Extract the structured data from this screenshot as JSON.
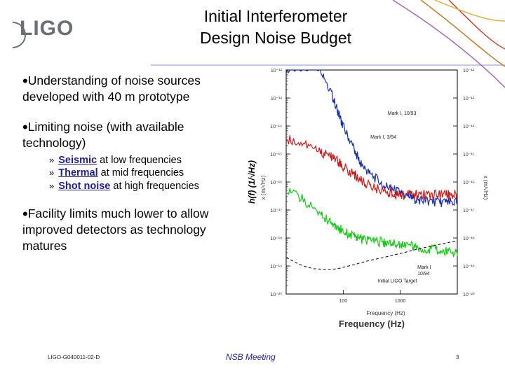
{
  "slide": {
    "logo_text": "LIGO",
    "title_line1": "Initial Interferometer",
    "title_line2": "Design Noise Budget",
    "bullets": [
      {
        "text": "Understanding of noise sources developed with 40 m prototype",
        "line1": "Understanding of noise sources",
        "line2": "developed with 40 m prototype"
      },
      {
        "text": "Limiting noise (with available technology)",
        "line1": "Limiting noise (with available",
        "line2": "technology)"
      },
      {
        "text": "Facility limits much lower to allow improved detectors as technology matures",
        "line1": "Facility limits much lower to allow",
        "line2": "improved detectors as technology",
        "line3": "matures"
      }
    ],
    "subbullets": [
      {
        "marker": "»",
        "keyword": "Seismic",
        "rest": " at low frequencies"
      },
      {
        "marker": "»",
        "keyword": "Thermal",
        "rest": " at mid frequencies"
      },
      {
        "marker": "»",
        "keyword": "Shot noise",
        "rest": " at high frequencies"
      }
    ],
    "footer_doc": "LIGO-G040011-02-D",
    "footer_meeting": "NSB Meeting",
    "footer_page": "3",
    "accent_color": "#8a8fd0"
  },
  "chart_data": {
    "type": "line",
    "title": "",
    "xlabel": "Frequency (Hz)",
    "ylabel": "h(f) (1/√Hz)",
    "xlabel_small": "Frequency (Hz)",
    "ylabel_small": "x (m/√Hz)",
    "right_ylabel": "x (m/√Hz)",
    "xscale": "log",
    "yscale": "log",
    "xlim": [
      10,
      10000
    ],
    "ylim": [
      1e-20,
      1e-12
    ],
    "x_tick_labels": [
      {
        "value": 100,
        "label": "100"
      },
      {
        "value": 1000,
        "label": "1000"
      }
    ],
    "y_tick_labels_left": [
      {
        "value": 1e-12,
        "label": "10⁻¹²"
      },
      {
        "value": 1e-13,
        "label": "10⁻¹³"
      },
      {
        "value": 1e-14,
        "label": "10⁻¹⁴"
      },
      {
        "value": 1e-15,
        "label": "10⁻¹⁵"
      },
      {
        "value": 1e-16,
        "label": "10⁻¹⁶"
      },
      {
        "value": 1e-17,
        "label": "10⁻¹⁷"
      },
      {
        "value": 1e-18,
        "label": "10⁻¹⁸"
      },
      {
        "value": 1e-19,
        "label": "10⁻¹⁹"
      },
      {
        "value": 1e-20,
        "label": "10⁻²⁰"
      }
    ],
    "y_tick_labels_right": [
      {
        "value": 1e-12,
        "label": "10⁻¹²"
      },
      {
        "value": 1e-13,
        "label": "10⁻¹³"
      },
      {
        "value": 1e-14,
        "label": "10⁻¹⁴"
      },
      {
        "value": 1e-15,
        "label": "10⁻¹⁵"
      },
      {
        "value": 1e-16,
        "label": "10⁻¹⁶"
      },
      {
        "value": 1e-17,
        "label": "10⁻¹⁷"
      },
      {
        "value": 1e-18,
        "label": "10⁻¹⁸"
      },
      {
        "value": 1e-19,
        "label": "10⁻¹⁹"
      },
      {
        "value": 1e-20,
        "label": "10⁻²⁰"
      }
    ],
    "grid": false,
    "series": [
      {
        "name": "Mark I, 10/93",
        "color": "#1a2fa8",
        "x": [
          10,
          20,
          40,
          60,
          80,
          100,
          150,
          200,
          300,
          500,
          700,
          1000,
          1500,
          2000,
          3000,
          5000,
          7000,
          10000
        ],
        "y": [
          1e-12,
          1e-12,
          1e-12,
          1.5e-13,
          3e-14,
          8e-15,
          1.5e-15,
          4e-16,
          1.6e-16,
          7e-17,
          5e-17,
          3.5e-17,
          2.5e-17,
          2e-17,
          1.8e-17,
          1.6e-17,
          1.6e-17,
          1.6e-17
        ]
      },
      {
        "name": "Mark I, 3/94",
        "color": "#cc1a1a",
        "x": [
          10,
          20,
          40,
          60,
          80,
          100,
          150,
          200,
          300,
          500,
          700,
          1000,
          1500,
          2000,
          3000,
          5000,
          7000,
          10000
        ],
        "y": [
          3e-15,
          2e-15,
          1e-15,
          7e-16,
          5e-16,
          3e-16,
          1.6e-16,
          1e-16,
          6e-17,
          4e-17,
          3.5e-17,
          3e-17,
          3e-17,
          3e-17,
          3e-17,
          3e-17,
          3e-17,
          3e-17
        ]
      },
      {
        "name": "Mark I, 10/94",
        "color": "#17c817",
        "x": [
          10,
          20,
          40,
          60,
          80,
          100,
          150,
          200,
          300,
          500,
          700,
          1000,
          1500,
          2000,
          3000,
          5000,
          7000,
          10000
        ],
        "y": [
          5e-17,
          2e-17,
          6e-18,
          3e-18,
          2e-18,
          1.5e-18,
          1e-18,
          8e-19,
          7e-19,
          6e-19,
          5.5e-19,
          5e-19,
          4.5e-19,
          4e-19,
          3.5e-19,
          3e-19,
          2.6e-19,
          2.3e-19
        ]
      },
      {
        "name": "Initial LIGO Target",
        "color": "#000000",
        "dash": true,
        "x": [
          10,
          15,
          20,
          30,
          50,
          80,
          100,
          150,
          200,
          300,
          500,
          1000,
          2000,
          5000,
          10000
        ],
        "y": [
          2e-19,
          1.3e-19,
          1e-19,
          8e-20,
          7.5e-20,
          8e-20,
          9e-20,
          1.1e-19,
          1.3e-19,
          1.6e-19,
          2e-19,
          2.8e-19,
          4e-19,
          6e-19,
          8e-19
        ]
      }
    ],
    "annotations": [
      {
        "text": "Mark I, 10/93",
        "series": "Mark I, 10/93"
      },
      {
        "text": "Mark I, 3/94",
        "series": "Mark I, 3/94"
      },
      {
        "text": "Mark I\n10/94",
        "series": "Mark I, 10/94"
      },
      {
        "text": "Initial LIGO Target",
        "series": "Initial LIGO Target"
      }
    ]
  }
}
